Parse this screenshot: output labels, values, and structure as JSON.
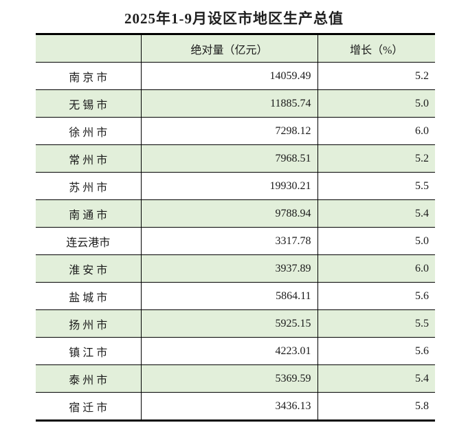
{
  "title": "2025年1-9月设区市地区生产总值",
  "table": {
    "headers": [
      "",
      "绝对量（亿元）",
      "增长（%）"
    ],
    "rows": [
      {
        "city": "南 京 市",
        "absolute": "14059.49",
        "growth": "5.2"
      },
      {
        "city": "无 锡 市",
        "absolute": "11885.74",
        "growth": "5.0"
      },
      {
        "city": "徐 州 市",
        "absolute": "7298.12",
        "growth": "6.0"
      },
      {
        "city": "常 州 市",
        "absolute": "7968.51",
        "growth": "5.2"
      },
      {
        "city": "苏 州 市",
        "absolute": "19930.21",
        "growth": "5.5"
      },
      {
        "city": "南 通 市",
        "absolute": "9788.94",
        "growth": "5.4"
      },
      {
        "city": "连云港市",
        "absolute": "3317.78",
        "growth": "5.0"
      },
      {
        "city": "淮 安 市",
        "absolute": "3937.89",
        "growth": "6.0"
      },
      {
        "city": "盐 城 市",
        "absolute": "5864.11",
        "growth": "5.6"
      },
      {
        "city": "扬 州 市",
        "absolute": "5925.15",
        "growth": "5.5"
      },
      {
        "city": "镇 江 市",
        "absolute": "4223.01",
        "growth": "5.6"
      },
      {
        "city": "泰 州 市",
        "absolute": "5369.59",
        "growth": "5.4"
      },
      {
        "city": "宿 迁 市",
        "absolute": "3436.13",
        "growth": "5.8"
      }
    ]
  },
  "colors": {
    "stripe_green": "#e2efda",
    "border": "#000000",
    "background": "#ffffff",
    "text": "#1a1a1a"
  },
  "chart_data": {
    "type": "table",
    "title": "2025年1-9月设区市地区生产总值",
    "columns": [
      "",
      "绝对量（亿元）",
      "增长（%）"
    ],
    "rows": [
      [
        "南京市",
        14059.49,
        5.2
      ],
      [
        "无锡市",
        11885.74,
        5.0
      ],
      [
        "徐州市",
        7298.12,
        6.0
      ],
      [
        "常州市",
        7968.51,
        5.2
      ],
      [
        "苏州市",
        19930.21,
        5.5
      ],
      [
        "南通市",
        9788.94,
        5.4
      ],
      [
        "连云港市",
        3317.78,
        5.0
      ],
      [
        "淮安市",
        3937.89,
        6.0
      ],
      [
        "盐城市",
        5864.11,
        5.6
      ],
      [
        "扬州市",
        5925.15,
        5.5
      ],
      [
        "镇江市",
        4223.01,
        5.6
      ],
      [
        "泰州市",
        5369.59,
        5.4
      ],
      [
        "宿迁市",
        3436.13,
        5.8
      ]
    ],
    "layout": {
      "zebra_stripes": true,
      "header_background": "#e2efda",
      "thick_top_bottom_borders": true,
      "value_alignment": "right"
    }
  }
}
